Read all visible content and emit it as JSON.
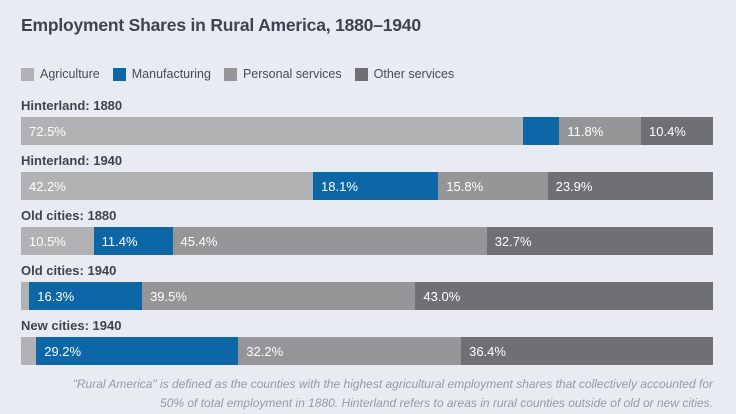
{
  "page": {
    "title": "Employment Shares in Rural America, 1880–1940",
    "footnote_lines": [
      "\"Rural America\" is defined as the counties with the highest agricultural employment shares that collectively accounted for",
      "50% of total employment in 1880. Hinterland refers to areas in rural counties outside of old or new cities."
    ]
  },
  "colors": {
    "background": "#e9ebf3",
    "title_text": "#3d4450",
    "legend_text": "#454c58",
    "bar_label_text": "#ffffff",
    "footnote_text": "#949aab",
    "agriculture": "#b1b2b4",
    "manufacturing": "#0d67a6",
    "personal_services": "#949698",
    "other_services": "#6f7073"
  },
  "legend": {
    "items": [
      {
        "label": "Agriculture",
        "color": "#b1b2b4"
      },
      {
        "label": "Manufacturing",
        "color": "#0d67a6"
      },
      {
        "label": "Personal services",
        "color": "#949698"
      },
      {
        "label": "Other services",
        "color": "#6f7073"
      }
    ]
  },
  "chart_data": {
    "type": "bar",
    "orientation": "horizontal-stacked",
    "title": "Employment Shares in Rural America, 1880–1940",
    "unit": "percent",
    "xlim": [
      0,
      100
    ],
    "series_names": [
      "Agriculture",
      "Manufacturing",
      "Personal services",
      "Other services"
    ],
    "categories": [
      "Hinterland: 1880",
      "Hinterland: 1940",
      "Old cities: 1880",
      "Old cities: 1940",
      "New cities: 1940"
    ],
    "rows": [
      {
        "label": "Hinterland: 1880",
        "segments": [
          {
            "series": "Agriculture",
            "value": 72.5,
            "label": "72.5%"
          },
          {
            "series": "Manufacturing",
            "value": 5.3,
            "label": ""
          },
          {
            "series": "Personal services",
            "value": 11.8,
            "label": "11.8%"
          },
          {
            "series": "Other services",
            "value": 10.4,
            "label": "10.4%"
          }
        ]
      },
      {
        "label": "Hinterland: 1940",
        "segments": [
          {
            "series": "Agriculture",
            "value": 42.2,
            "label": "42.2%"
          },
          {
            "series": "Manufacturing",
            "value": 18.1,
            "label": "18.1%"
          },
          {
            "series": "Personal services",
            "value": 15.8,
            "label": "15.8%"
          },
          {
            "series": "Other services",
            "value": 23.9,
            "label": "23.9%"
          }
        ]
      },
      {
        "label": "Old cities: 1880",
        "segments": [
          {
            "series": "Agriculture",
            "value": 10.5,
            "label": "10.5%"
          },
          {
            "series": "Manufacturing",
            "value": 11.4,
            "label": "11.4%"
          },
          {
            "series": "Personal services",
            "value": 45.4,
            "label": "45.4%"
          },
          {
            "series": "Other services",
            "value": 32.7,
            "label": "32.7%"
          }
        ]
      },
      {
        "label": "Old cities: 1940",
        "segments": [
          {
            "series": "Agriculture",
            "value": 1.2,
            "label": ""
          },
          {
            "series": "Manufacturing",
            "value": 16.3,
            "label": "16.3%"
          },
          {
            "series": "Personal services",
            "value": 39.5,
            "label": "39.5%"
          },
          {
            "series": "Other services",
            "value": 43.0,
            "label": "43.0%"
          }
        ]
      },
      {
        "label": "New cities: 1940",
        "segments": [
          {
            "series": "Agriculture",
            "value": 2.2,
            "label": ""
          },
          {
            "series": "Manufacturing",
            "value": 29.2,
            "label": "29.2%"
          },
          {
            "series": "Personal services",
            "value": 32.2,
            "label": "32.2%"
          },
          {
            "series": "Other services",
            "value": 36.4,
            "label": "36.4%"
          }
        ]
      }
    ]
  }
}
